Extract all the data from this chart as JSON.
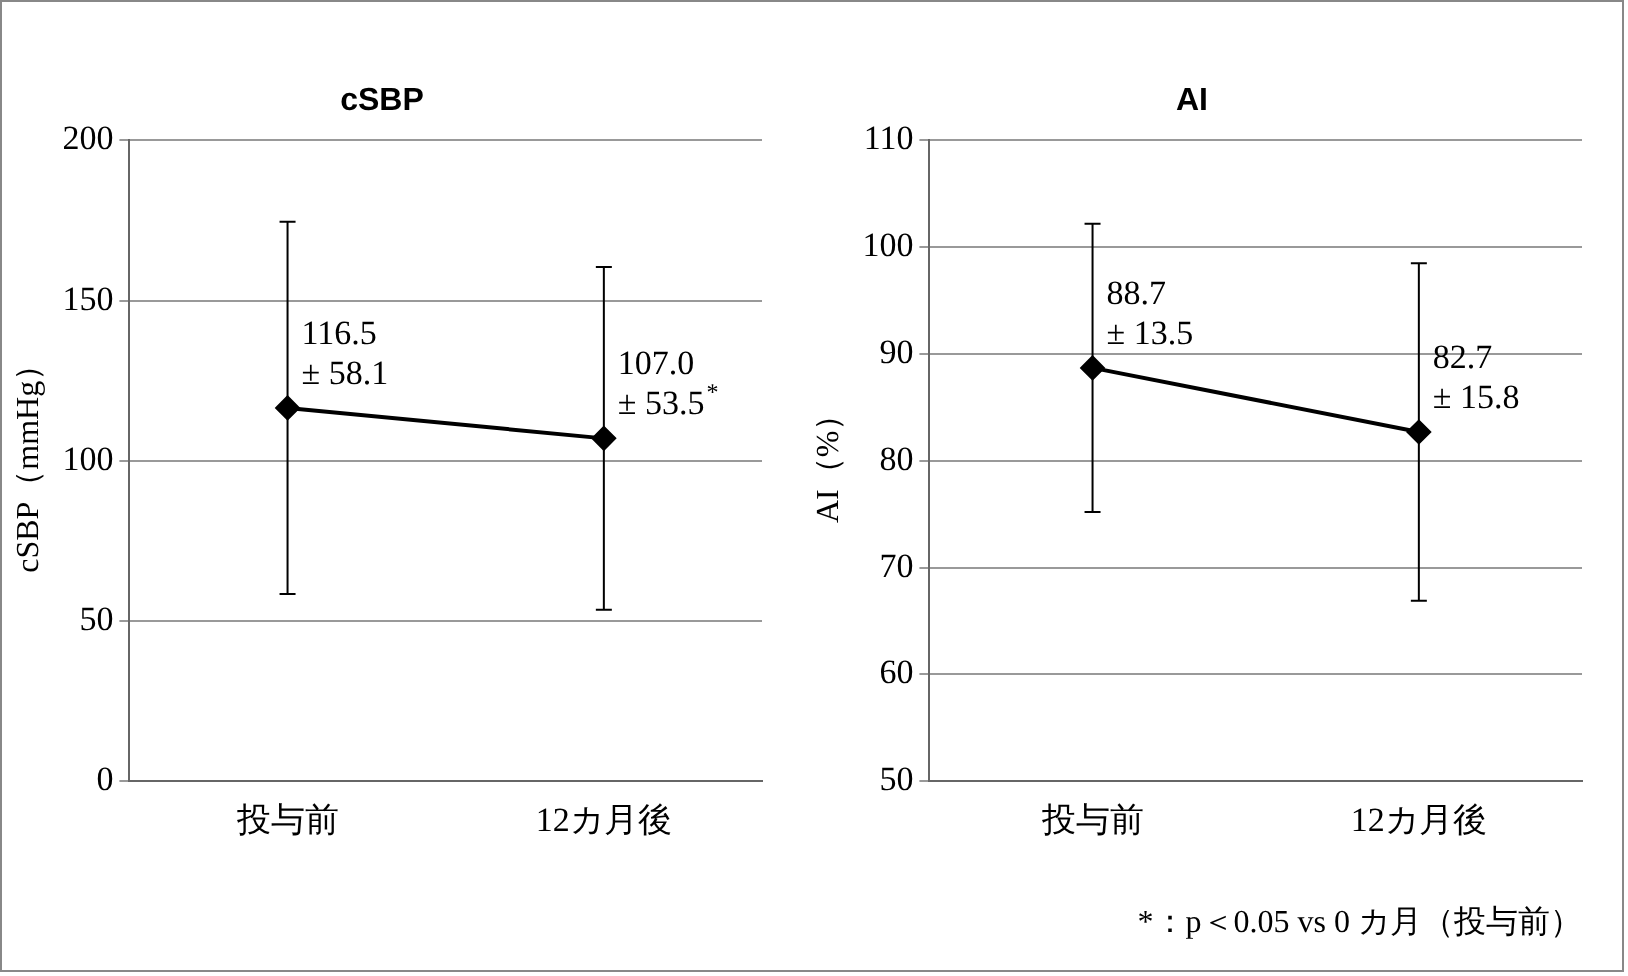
{
  "chart_data": [
    {
      "type": "line",
      "title": "cSBP",
      "ylabel": "cSBP（mmHg）",
      "categories": [
        "投与前",
        "12カ月後"
      ],
      "series": [
        {
          "color": "#000000",
          "values": [
            116.5,
            107.0
          ],
          "errors": [
            58.1,
            53.5
          ],
          "value_labels": [
            "116.5\n± 58.1",
            "107.0\n± 53.5$^{*}$"
          ]
        }
      ],
      "ylim": [
        0,
        200
      ],
      "yticks": [
        0,
        50,
        100,
        150,
        200
      ],
      "grid": "y",
      "legend": false,
      "marker": "diamond",
      "line_style": "solid"
    },
    {
      "type": "line",
      "title": "AI",
      "ylabel": "AI（%）",
      "categories": [
        "投与前",
        "12カ月後"
      ],
      "series": [
        {
          "color": "#000000",
          "values": [
            88.7,
            82.7
          ],
          "errors": [
            13.5,
            15.8
          ],
          "value_labels": [
            "88.7\n± 13.5",
            "82.7\n± 15.8"
          ]
        }
      ],
      "ylim": [
        50,
        110
      ],
      "yticks": [
        50,
        60,
        70,
        80,
        90,
        100,
        110
      ],
      "grid": "y",
      "legend": false,
      "marker": "diamond",
      "line_style": "solid",
      "annotations": [
        "*：p＜0.05 vs 0 カ月（投与前）"
      ]
    }
  ]
}
